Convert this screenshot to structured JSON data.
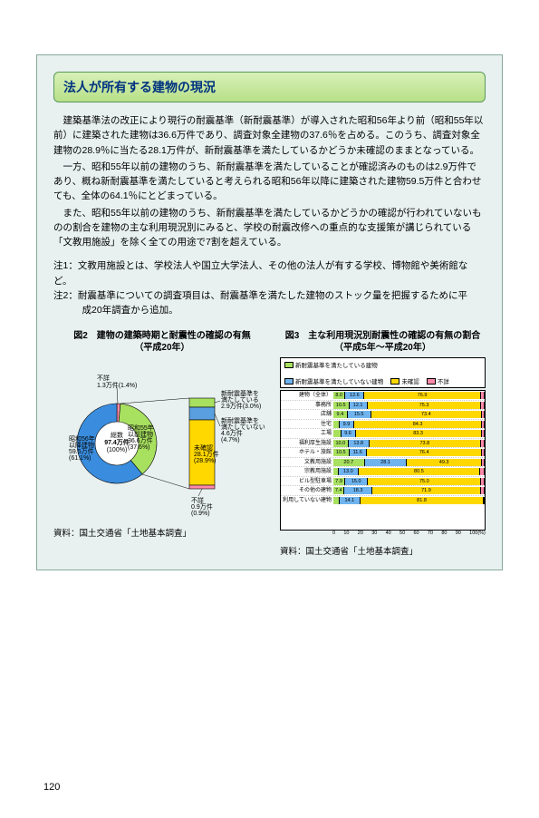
{
  "page_number": "120",
  "title": "法人が所有する建物の現況",
  "paragraphs": [
    "建築基準法の改正により現行の耐震基準（新耐震基準）が導入された昭和56年より前（昭和55年以前）に建築された建物は36.6万件であり、調査対象全建物の37.6％を占める。このうち、調査対象全建物の28.9％に当たる28.1万件が、新耐震基準を満たしているかどうか未確認のままとなっている。",
    "一方、昭和55年以前の建物のうち、新耐震基準を満たしていることが確認済みのものは2.9万件であり、概ね新耐震基準を満たしていると考えられる昭和56年以降に建築された建物59.5万件と合わせても、全体の64.1％にとどまっている。",
    "また、昭和55年以前の建物のうち、新耐震基準を満たしているかどうかの確認が行われていないものの割合を建物の主な利用現況別にみると、学校の耐震改修への重点的な支援策が講じられている「文教用施設」を除く全ての用途で7割を超えている。"
  ],
  "note1": "注1：文教用施設とは、学校法人や国立大学法人、その他の法人が有する学校、博物館や美術館など。",
  "note2_l1": "注2：耐震基準についての調査項目は、耐震基準を満たした建物のストック量を把握するために平",
  "note2_l2": "成20年調査から追加。",
  "fig2": {
    "title_l1": "図2　建物の建築時期と耐震性の確認の有無",
    "title_l2": "（平成20年）",
    "source": "資料：国土交通省「土地基本調査」",
    "colors": {
      "post56": "#3a8dde",
      "pre55_meets": "#a8e060",
      "pre55_notmeets": "#ffd800",
      "pre55_unconfirmed": "#ffd800",
      "unknown_top": "#ff8aa8",
      "unknown_bottom": "#c8b8e8",
      "outline": "#000000"
    },
    "center_l1": "総数",
    "center_l2": "97.4万件",
    "center_l3": "(100%)",
    "labels": {
      "unknown_top": "不詳\n1.3万件(1.4%)",
      "post56": "昭和56年\n以降建物\n59.5万件\n(61.1%)",
      "pre55_block": "昭和55年\n以前建物\n36.6万件\n(37.6%)",
      "meets": "新耐震基準を\n満たしている\n2.9万件(3.0%)",
      "notmeets": "新耐震基準を\n満たしていない\n4.6万件\n(4.7%)",
      "unconfirmed": "未確認\n28.1万件\n(28.9%)",
      "unknown_bottom": "不詳\n0.9万件\n(0.9%)"
    }
  },
  "fig3": {
    "title_l1": "図3　主な利用現況別耐震性の確認の有無の割合",
    "title_l2": "（平成5年～平成20年）",
    "source": "資料：国土交通省「土地基本調査」",
    "legend": {
      "meets": "新耐震基準を満たしている建物",
      "notmeets": "新耐震基準を満たしていない建物",
      "unconf": "未確認",
      "unknown": "不詳"
    },
    "colors": {
      "meets": "#a8e060",
      "notmeets": "#6fb4ef",
      "unconf": "#ffd800",
      "unknown": "#ff8aa8",
      "border": "#000000",
      "bg": "#ffffff"
    },
    "xticks": [
      "0",
      "10",
      "20",
      "30",
      "40",
      "50",
      "60",
      "70",
      "80",
      "90",
      "100(%)"
    ],
    "rows": [
      {
        "label": "建物（全体）",
        "v": [
          8.0,
          12.6,
          76.9,
          2.5
        ]
      },
      {
        "label": "事務所",
        "v": [
          10.5,
          12.1,
          75.3,
          2.1
        ]
      },
      {
        "label": "店舗",
        "v": [
          9.4,
          15.5,
          73.4,
          1.7
        ]
      },
      {
        "label": "住宅",
        "v": [
          4.0,
          9.9,
          84.3,
          1.8
        ]
      },
      {
        "label": "工場",
        "v": [
          5.1,
          9.6,
          83.3,
          2.0
        ]
      },
      {
        "label": "福利厚生施設",
        "v": [
          10.0,
          13.8,
          73.8,
          2.4
        ]
      },
      {
        "label": "ホテル・旅館",
        "v": [
          10.5,
          11.6,
          76.4,
          1.5
        ]
      },
      {
        "label": "文教用施設",
        "v": [
          20.7,
          28.1,
          49.3,
          1.9
        ]
      },
      {
        "label": "宗教用施設",
        "v": [
          3.6,
          13.0,
          80.5,
          2.9
        ]
      },
      {
        "label": "ビル型駐車場",
        "v": [
          7.9,
          15.0,
          75.0,
          2.1
        ]
      },
      {
        "label": "その他の建物",
        "v": [
          7.4,
          18.3,
          71.9,
          2.4
        ]
      },
      {
        "label": "利用していない建物",
        "v": [
          4.0,
          14.1,
          81.8,
          0.1
        ]
      }
    ]
  }
}
